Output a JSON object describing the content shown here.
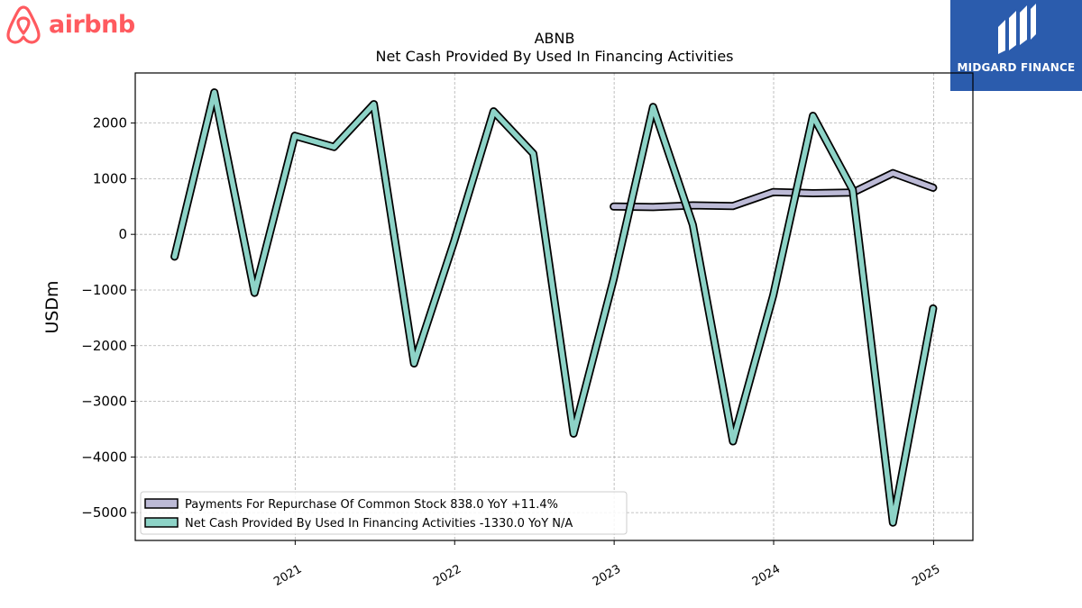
{
  "brand": {
    "left_logo_text": "airbnb",
    "left_logo_color": "#ff5a5f",
    "right_logo_text": "MIDGARD FINANCE",
    "right_logo_bg": "#2b5cad"
  },
  "chart_data": {
    "type": "line",
    "title": "ABNB",
    "subtitle": "Net Cash Provided By Used In Financing Activities",
    "ylabel": "USDm",
    "xlabel": "",
    "ylim": [
      -5500,
      2900
    ],
    "y_ticks": [
      -5000,
      -4000,
      -3000,
      -2000,
      -1000,
      0,
      1000,
      2000
    ],
    "y_tick_labels": [
      "−5000",
      "−4000",
      "−3000",
      "−2000",
      "−1000",
      "0",
      "1000",
      "2000"
    ],
    "xlim": [
      "2020-01-01",
      "2025-04-01"
    ],
    "x_ticks": [
      "2021-01-01",
      "2022-01-01",
      "2023-01-01",
      "2024-01-01",
      "2025-01-01"
    ],
    "x_tick_labels": [
      "2021",
      "2022",
      "2023",
      "2024",
      "2025"
    ],
    "grid": true,
    "legend_position": "lower-left",
    "series": [
      {
        "name": "Payments For Repurchase Of Common Stock  838.0 YoY +11.4%",
        "color": "#bcbad6",
        "x": [
          "2022-12-31",
          "2023-03-31",
          "2023-06-30",
          "2023-09-30",
          "2023-12-31",
          "2024-03-31",
          "2024-06-30",
          "2024-09-30",
          "2024-12-31"
        ],
        "values": [
          500,
          490,
          520,
          510,
          760,
          740,
          750,
          1100,
          838
        ]
      },
      {
        "name": "Net Cash Provided By Used In Financing Activities  -1330.0 YoY N/A",
        "color": "#8dd3c7",
        "x": [
          "2020-03-31",
          "2020-06-30",
          "2020-09-30",
          "2020-12-31",
          "2021-03-31",
          "2021-06-30",
          "2021-09-30",
          "2021-12-31",
          "2022-03-31",
          "2022-06-30",
          "2022-09-30",
          "2022-12-31",
          "2023-03-31",
          "2023-06-30",
          "2023-09-30",
          "2023-12-31",
          "2024-03-31",
          "2024-06-30",
          "2024-09-30",
          "2024-12-31"
        ],
        "values": [
          -400,
          2550,
          -1050,
          1770,
          1570,
          2340,
          -2320,
          -120,
          2210,
          1450,
          -3580,
          -800,
          2290,
          170,
          -3720,
          -1100,
          2130,
          800,
          -5180,
          -1330
        ]
      }
    ]
  }
}
